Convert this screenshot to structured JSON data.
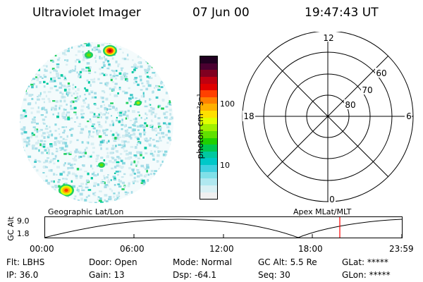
{
  "header": {
    "instrument": "Ultraviolet Imager",
    "date": "07 Jun 00",
    "time": "19:47:43 UT"
  },
  "colorbar": {
    "unit_label": "photon cm⁻²s⁻¹",
    "tick_labels": [
      "100",
      "10"
    ],
    "colors": [
      "#200020",
      "#4a0030",
      "#800020",
      "#c00010",
      "#e00000",
      "#ff4000",
      "#ff8000",
      "#ffb000",
      "#ffe000",
      "#e0ff00",
      "#a0f000",
      "#60e000",
      "#20d000",
      "#00c850",
      "#00c8a0",
      "#00c8c8",
      "#40d0e0",
      "#80e0e8",
      "#b0e8f0",
      "#d8f0f4",
      "#f0f0f0"
    ]
  },
  "polar_plot": {
    "mlt_labels": {
      "top": "12",
      "left": "18",
      "right": "6",
      "bottom": "0"
    },
    "lat_labels": [
      "60",
      "70",
      "80"
    ]
  },
  "altitude_plot": {
    "left_title": "Geographic Lat/Lon",
    "right_title": "Apex MLat/MLT",
    "axis_label": "GC Alt",
    "y_ticks": [
      "9.0",
      "1.8"
    ],
    "x_ticks": [
      "00:00",
      "06:00",
      "12:00",
      "18:00",
      "23:59"
    ],
    "marker_color": "#ff0000"
  },
  "status": {
    "flt": "Flt: LBHS",
    "door": "Door: Open",
    "mode": "Mode: Normal",
    "gc_alt": "GC Alt: 5.5 Re",
    "glat": "GLat: *****",
    "ip": "IP: 36.0",
    "gain": "Gain: 13",
    "dsp": "Dsp:   -64.1",
    "seq": "Seq: 30",
    "glon": "GLon: *****"
  }
}
